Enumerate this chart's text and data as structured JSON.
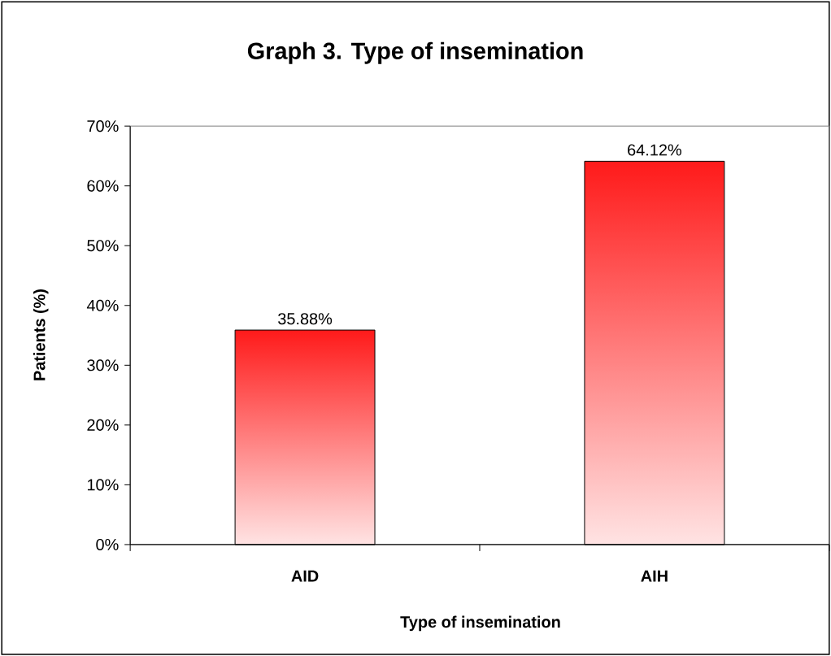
{
  "chart_data": {
    "type": "bar",
    "title": "Graph 3. Type of insemination",
    "xlabel": "Type of insemination",
    "ylabel": "Patients (%)",
    "categories": [
      "AID",
      "AIH"
    ],
    "values": [
      35.88,
      64.12
    ],
    "value_labels": [
      "35.88%",
      "64.12%"
    ],
    "color": "#ff1a1a",
    "ylim": [
      0,
      70
    ],
    "yticks": [
      {
        "value": 0,
        "label": "0%"
      },
      {
        "value": 10,
        "label": "10%"
      },
      {
        "value": 20,
        "label": "20%"
      },
      {
        "value": 30,
        "label": "30%"
      },
      {
        "value": 40,
        "label": "40%"
      },
      {
        "value": 50,
        "label": "50%"
      },
      {
        "value": 60,
        "label": "60%"
      },
      {
        "value": 70,
        "label": "70%"
      }
    ],
    "grid": false
  }
}
